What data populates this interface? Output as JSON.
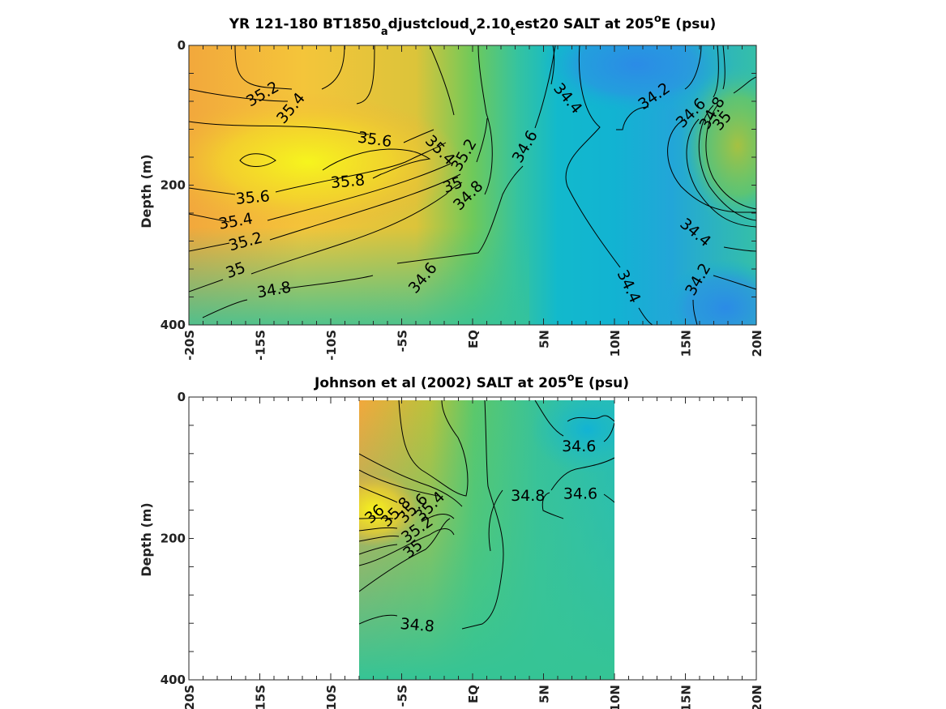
{
  "colors": {
    "salty": "#f4f020",
    "orange": "#f2b13c",
    "green": "#7cc854",
    "teal": "#36c39a",
    "cyan": "#12b6cf",
    "blue": "#2e8fe0"
  },
  "chart_data": [
    {
      "type": "heatmap",
      "title_parts": {
        "a": "YR 121-180 BT1850",
        "sub1": "a",
        "b": "djustcloud",
        "sub2": "v",
        "c": "2.10",
        "sub3": "t",
        "d": "est20 SALT at 205",
        "sup": "o",
        "e": "E (psu)"
      },
      "ylabel": "Depth (m)",
      "x_ticks": [
        "-20S",
        "-15S",
        "-10S",
        "-5S",
        "EQ",
        "5N",
        "10N",
        "15N",
        "20N"
      ],
      "y_ticks": [
        "0",
        "200",
        "400"
      ],
      "xlim": [
        -20,
        20
      ],
      "ylim": [
        0,
        400
      ],
      "contour_labels": [
        {
          "value": "35.2",
          "lat": -14.8,
          "depth": 70,
          "angle": -30
        },
        {
          "value": "35.4",
          "lat": -12.8,
          "depth": 90,
          "angle": -50
        },
        {
          "value": "35.6",
          "lat": -6.9,
          "depth": 135,
          "angle": 8
        },
        {
          "value": "35.8",
          "lat": -8.8,
          "depth": 195,
          "angle": -5
        },
        {
          "value": "35.4",
          "lat": -2.3,
          "depth": 150,
          "angle": 45
        },
        {
          "value": "35.2",
          "lat": -0.6,
          "depth": 157,
          "angle": -60
        },
        {
          "value": "35",
          "lat": -1.4,
          "depth": 200,
          "angle": -20
        },
        {
          "value": "34.8",
          "lat": -0.3,
          "depth": 215,
          "angle": -45
        },
        {
          "value": "34.6",
          "lat": 3.7,
          "depth": 145,
          "angle": -60
        },
        {
          "value": "35.6",
          "lat": -15.5,
          "depth": 218,
          "angle": -5
        },
        {
          "value": "35.4",
          "lat": -16.7,
          "depth": 252,
          "angle": -10
        },
        {
          "value": "35.2",
          "lat": -16.0,
          "depth": 281,
          "angle": -15
        },
        {
          "value": "35",
          "lat": -16.7,
          "depth": 322,
          "angle": -20
        },
        {
          "value": "34.8",
          "lat": -14.0,
          "depth": 350,
          "angle": -10
        },
        {
          "value": "34.6",
          "lat": -3.5,
          "depth": 333,
          "angle": -50
        },
        {
          "value": "34.4",
          "lat": 6.7,
          "depth": 76,
          "angle": 50
        },
        {
          "value": "34.2",
          "lat": 12.8,
          "depth": 73,
          "angle": -35
        },
        {
          "value": "34.6",
          "lat": 15.4,
          "depth": 97,
          "angle": -45
        },
        {
          "value": "34.8",
          "lat": 16.9,
          "depth": 97,
          "angle": -60
        },
        {
          "value": "35",
          "lat": 17.6,
          "depth": 108,
          "angle": -50
        },
        {
          "value": "34.4",
          "lat": 15.7,
          "depth": 268,
          "angle": 40
        },
        {
          "value": "34.4",
          "lat": 11.0,
          "depth": 345,
          "angle": 65
        },
        {
          "value": "34.2",
          "lat": 15.9,
          "depth": 335,
          "angle": -60
        }
      ]
    },
    {
      "type": "heatmap",
      "title_parts": {
        "a": "Johnson et al (2002) SALT at 205",
        "sup": "o",
        "e": "E (psu)"
      },
      "ylabel": "Depth (m)",
      "x_ticks": [
        "-20S",
        "-15S",
        "-10S",
        "-5S",
        "EQ",
        "5N",
        "10N",
        "15N",
        "20N"
      ],
      "y_ticks": [
        "0",
        "200",
        "400"
      ],
      "xlim": [
        -20,
        20
      ],
      "ylim": [
        0,
        400
      ],
      "data_extent": [
        -8,
        10
      ],
      "contour_labels": [
        {
          "value": "34.6",
          "lat": 7.5,
          "depth": 66,
          "angle": 0
        },
        {
          "value": "34.8",
          "lat": 3.9,
          "depth": 137,
          "angle": 0
        },
        {
          "value": "34.6",
          "lat": 7.6,
          "depth": 134,
          "angle": 0
        },
        {
          "value": "36",
          "lat": -6.9,
          "depth": 163,
          "angle": -40
        },
        {
          "value": "35.8",
          "lat": -5.4,
          "depth": 160,
          "angle": -45
        },
        {
          "value": "35.6",
          "lat": -4.2,
          "depth": 155,
          "angle": -45
        },
        {
          "value": "35.4",
          "lat": -3.0,
          "depth": 152,
          "angle": -45
        },
        {
          "value": "35.2",
          "lat": -3.9,
          "depth": 185,
          "angle": -35
        },
        {
          "value": "35",
          "lat": -4.2,
          "depth": 213,
          "angle": -40
        },
        {
          "value": "34.8",
          "lat": -3.9,
          "depth": 322,
          "angle": 5
        }
      ]
    }
  ]
}
